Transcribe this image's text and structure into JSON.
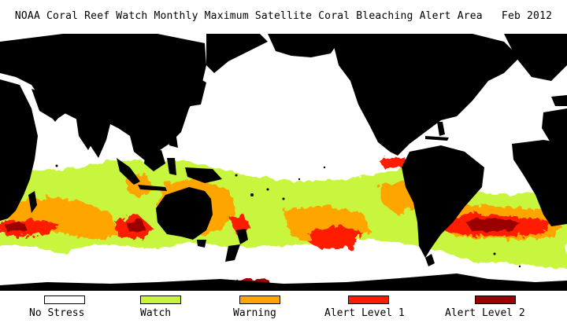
{
  "title": "NOAA Coral Reef Watch Monthly Maximum Satellite Coral Bleaching Alert Area   Feb 2012",
  "colors": {
    "land": "#000000",
    "no_stress": "#ffffff",
    "watch": "#c8f53c",
    "warning": "#ffa500",
    "alert1": "#ff1a00",
    "alert2": "#9b0000"
  },
  "legend": [
    {
      "label": "No Stress",
      "color": "#ffffff"
    },
    {
      "label": "Watch",
      "color": "#c8f53c"
    },
    {
      "label": "Warning",
      "color": "#ffa500"
    },
    {
      "label": "Alert Level 1",
      "color": "#ff1a00"
    },
    {
      "label": "Alert Level 2",
      "color": "#9b0000"
    }
  ]
}
